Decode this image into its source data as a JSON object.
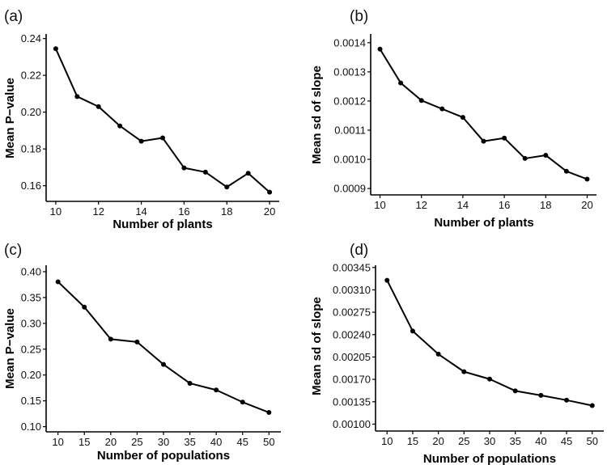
{
  "chart_data": [
    {
      "panel_label": "(a)",
      "type": "line",
      "xlabel": "Number of plants",
      "ylabel": "Mean P−value",
      "x": [
        10,
        11,
        12,
        13,
        14,
        15,
        16,
        17,
        18,
        19,
        20
      ],
      "series": [
        {
          "values": [
            0.2345,
            0.2085,
            0.203,
            0.1925,
            0.1842,
            0.186,
            0.1697,
            0.1674,
            0.1593,
            0.1668,
            0.1565
          ]
        }
      ],
      "xlim": [
        9.55,
        20.45
      ],
      "ylim": [
        0.1515,
        0.2425
      ],
      "x_ticks": [
        10,
        12,
        14,
        16,
        18,
        20
      ],
      "x_tick_labels": [
        "10",
        "12",
        "14",
        "16",
        "18",
        "20"
      ],
      "y_ticks": [
        0.16,
        0.18,
        0.2,
        0.22,
        0.24
      ],
      "y_tick_labels": [
        "0.16",
        "0.18",
        "0.20",
        "0.22",
        "0.24"
      ],
      "grid": false,
      "legend": "none"
    },
    {
      "panel_label": "(b)",
      "type": "line",
      "xlabel": "Number of plants",
      "ylabel": "Mean sd of slope",
      "x": [
        10,
        11,
        12,
        13,
        14,
        15,
        16,
        17,
        18,
        19,
        20
      ],
      "series": [
        {
          "values": [
            0.001378,
            0.001262,
            0.001202,
            0.001173,
            0.001144,
            0.001062,
            0.001073,
            0.001003,
            0.001014,
            0.000959,
            0.000932
          ]
        }
      ],
      "xlim": [
        9.55,
        20.45
      ],
      "ylim": [
        0.000878,
        0.00143
      ],
      "x_ticks": [
        10,
        12,
        14,
        16,
        18,
        20
      ],
      "x_tick_labels": [
        "10",
        "12",
        "14",
        "16",
        "18",
        "20"
      ],
      "y_ticks": [
        0.0009,
        0.001,
        0.0011,
        0.0012,
        0.0013,
        0.0014
      ],
      "y_tick_labels": [
        "0.0009",
        "0.0010",
        "0.0011",
        "0.0012",
        "0.0013",
        "0.0014"
      ],
      "grid": false,
      "legend": "none"
    },
    {
      "panel_label": "(c)",
      "type": "line",
      "xlabel": "Number of populations",
      "ylabel": "Mean P−value",
      "x": [
        10,
        15,
        20,
        25,
        30,
        35,
        40,
        45,
        50
      ],
      "series": [
        {
          "values": [
            0.3805,
            0.3315,
            0.2695,
            0.264,
            0.2205,
            0.184,
            0.171,
            0.1475,
            0.1275
          ]
        }
      ],
      "xlim": [
        7.75,
        52.25
      ],
      "ylim": [
        0.09,
        0.4125
      ],
      "x_ticks": [
        10,
        15,
        20,
        25,
        30,
        35,
        40,
        45,
        50
      ],
      "x_tick_labels": [
        "10",
        "15",
        "20",
        "25",
        "30",
        "35",
        "40",
        "45",
        "50"
      ],
      "y_ticks": [
        0.1,
        0.15,
        0.2,
        0.25,
        0.3,
        0.35,
        0.4
      ],
      "y_tick_labels": [
        "0.10",
        "0.15",
        "0.20",
        "0.25",
        "0.30",
        "0.35",
        "0.40"
      ],
      "grid": false,
      "legend": "none"
    },
    {
      "panel_label": "(d)",
      "type": "line",
      "xlabel": "Number of populations",
      "ylabel": "Mean sd of slope",
      "x": [
        10,
        15,
        20,
        25,
        30,
        35,
        40,
        45,
        50
      ],
      "series": [
        {
          "values": [
            0.00325,
            0.002455,
            0.002095,
            0.00182,
            0.001705,
            0.00152,
            0.00145,
            0.001375,
            0.00129
          ]
        }
      ],
      "xlim": [
        7.75,
        52.25
      ],
      "ylim": [
        0.000892,
        0.003485
      ],
      "x_ticks": [
        10,
        15,
        20,
        25,
        30,
        35,
        40,
        45,
        50
      ],
      "x_tick_labels": [
        "10",
        "15",
        "20",
        "25",
        "30",
        "35",
        "40",
        "45",
        "50"
      ],
      "y_ticks": [
        0.001,
        0.00135,
        0.0017,
        0.00205,
        0.0024,
        0.00275,
        0.0031,
        0.00345
      ],
      "y_tick_labels": [
        "0.00100",
        "0.00135",
        "0.00170",
        "0.00205",
        "0.00240",
        "0.00275",
        "0.00310",
        "0.00345"
      ],
      "grid": false,
      "legend": "none"
    }
  ]
}
